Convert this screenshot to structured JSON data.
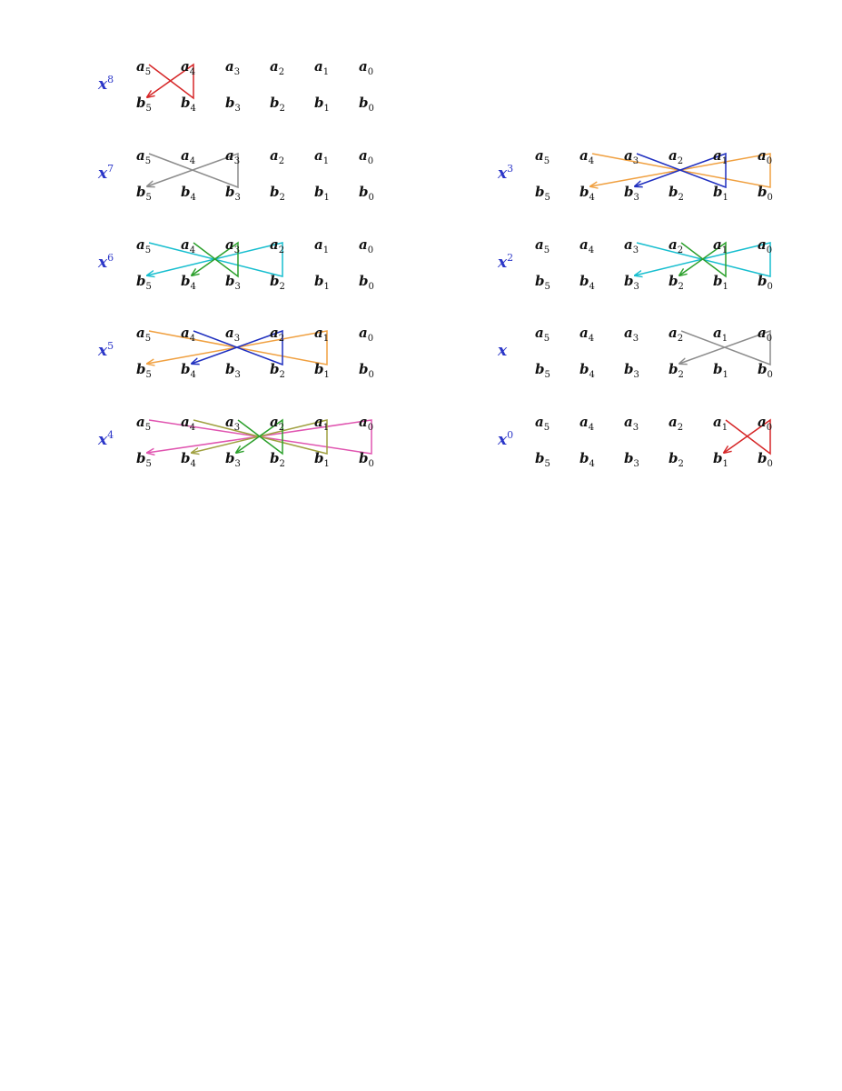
{
  "colors": {
    "red": "#d62728",
    "gray": "#8c8c8c",
    "cyan": "#17becf",
    "green": "#2ca02c",
    "orange": "#f0a040",
    "blue": "#1f2fbf",
    "magenta": "#e055b0",
    "olive": "#a0a040",
    "label": "#2b36c8"
  },
  "panels": [
    {
      "id": "x8",
      "base": "x",
      "exp": "8",
      "a": [
        [
          "a",
          "5"
        ],
        [
          "a",
          "4"
        ],
        [
          "a",
          "3"
        ],
        [
          "a",
          "2"
        ],
        [
          "a",
          "1"
        ],
        [
          "a",
          "0"
        ]
      ],
      "b": [
        [
          "b",
          "5"
        ],
        [
          "b",
          "4"
        ],
        [
          "b",
          "3"
        ],
        [
          "b",
          "2"
        ],
        [
          "b",
          "1"
        ],
        [
          "b",
          "0"
        ]
      ],
      "pairs": [
        {
          "from": 5,
          "to": 4,
          "color": "red"
        }
      ]
    },
    {
      "id": "x7",
      "base": "x",
      "exp": "7",
      "a": [
        [
          "a",
          "5"
        ],
        [
          "a",
          "4"
        ],
        [
          "a",
          "3"
        ],
        [
          "a",
          "2"
        ],
        [
          "a",
          "1"
        ],
        [
          "a",
          "0"
        ]
      ],
      "b": [
        [
          "b",
          "5"
        ],
        [
          "b",
          "4"
        ],
        [
          "b",
          "3"
        ],
        [
          "b",
          "2"
        ],
        [
          "b",
          "1"
        ],
        [
          "b",
          "0"
        ]
      ],
      "pairs": [
        {
          "from": 5,
          "to": 3,
          "color": "gray"
        }
      ]
    },
    {
      "id": "x6",
      "base": "x",
      "exp": "6",
      "a": [
        [
          "a",
          "5"
        ],
        [
          "a",
          "4"
        ],
        [
          "a",
          "3"
        ],
        [
          "a",
          "2"
        ],
        [
          "a",
          "1"
        ],
        [
          "a",
          "0"
        ]
      ],
      "b": [
        [
          "b",
          "5"
        ],
        [
          "b",
          "4"
        ],
        [
          "b",
          "3"
        ],
        [
          "b",
          "2"
        ],
        [
          "b",
          "1"
        ],
        [
          "b",
          "0"
        ]
      ],
      "pairs": [
        {
          "from": 5,
          "to": 2,
          "color": "cyan"
        },
        {
          "from": 4,
          "to": 3,
          "color": "green"
        }
      ]
    },
    {
      "id": "x5",
      "base": "x",
      "exp": "5",
      "a": [
        [
          "a",
          "5"
        ],
        [
          "a",
          "4"
        ],
        [
          "a",
          "3"
        ],
        [
          "a",
          "2"
        ],
        [
          "a",
          "1"
        ],
        [
          "a",
          "0"
        ]
      ],
      "b": [
        [
          "b",
          "5"
        ],
        [
          "b",
          "4"
        ],
        [
          "b",
          "3"
        ],
        [
          "b",
          "2"
        ],
        [
          "b",
          "1"
        ],
        [
          "b",
          "0"
        ]
      ],
      "pairs": [
        {
          "from": 5,
          "to": 1,
          "color": "orange"
        },
        {
          "from": 4,
          "to": 2,
          "color": "blue"
        }
      ]
    },
    {
      "id": "x4",
      "base": "x",
      "exp": "4",
      "a": [
        [
          "a",
          "5"
        ],
        [
          "a",
          "4"
        ],
        [
          "a",
          "3"
        ],
        [
          "a",
          "2"
        ],
        [
          "a",
          "1"
        ],
        [
          "a",
          "0"
        ]
      ],
      "b": [
        [
          "b",
          "5"
        ],
        [
          "b",
          "4"
        ],
        [
          "b",
          "3"
        ],
        [
          "b",
          "2"
        ],
        [
          "b",
          "1"
        ],
        [
          "b",
          "0"
        ]
      ],
      "pairs": [
        {
          "from": 5,
          "to": 0,
          "color": "magenta"
        },
        {
          "from": 4,
          "to": 1,
          "color": "olive"
        },
        {
          "from": 3,
          "to": 2,
          "color": "green"
        }
      ]
    },
    {
      "id": "x3",
      "base": "x",
      "exp": "3",
      "a": [
        [
          "a",
          "5"
        ],
        [
          "a",
          "4"
        ],
        [
          "a",
          "3"
        ],
        [
          "a",
          "2"
        ],
        [
          "a",
          "1"
        ],
        [
          "a",
          "0"
        ]
      ],
      "b": [
        [
          "b",
          "5"
        ],
        [
          "b",
          "4"
        ],
        [
          "b",
          "3"
        ],
        [
          "b",
          "2"
        ],
        [
          "b",
          "1"
        ],
        [
          "b",
          "0"
        ]
      ],
      "pairs": [
        {
          "from": 4,
          "to": 0,
          "color": "orange"
        },
        {
          "from": 3,
          "to": 1,
          "color": "blue"
        }
      ]
    },
    {
      "id": "x2",
      "base": "x",
      "exp": "2",
      "a": [
        [
          "a",
          "5"
        ],
        [
          "a",
          "4"
        ],
        [
          "a",
          "3"
        ],
        [
          "a",
          "2"
        ],
        [
          "a",
          "1"
        ],
        [
          "a",
          "0"
        ]
      ],
      "b": [
        [
          "b",
          "5"
        ],
        [
          "b",
          "4"
        ],
        [
          "b",
          "3"
        ],
        [
          "b",
          "2"
        ],
        [
          "b",
          "1"
        ],
        [
          "b",
          "0"
        ]
      ],
      "pairs": [
        {
          "from": 3,
          "to": 0,
          "color": "cyan"
        },
        {
          "from": 2,
          "to": 1,
          "color": "green"
        }
      ]
    },
    {
      "id": "x1",
      "base": "x",
      "exp": "",
      "a": [
        [
          "a",
          "5"
        ],
        [
          "a",
          "4"
        ],
        [
          "a",
          "3"
        ],
        [
          "a",
          "2"
        ],
        [
          "a",
          "1"
        ],
        [
          "a",
          "0"
        ]
      ],
      "b": [
        [
          "b",
          "5"
        ],
        [
          "b",
          "4"
        ],
        [
          "b",
          "3"
        ],
        [
          "b",
          "2"
        ],
        [
          "b",
          "1"
        ],
        [
          "b",
          "0"
        ]
      ],
      "pairs": [
        {
          "from": 2,
          "to": 0,
          "color": "gray"
        }
      ]
    },
    {
      "id": "x0",
      "base": "x",
      "exp": "0",
      "a": [
        [
          "a",
          "5"
        ],
        [
          "a",
          "4"
        ],
        [
          "a",
          "3"
        ],
        [
          "a",
          "2"
        ],
        [
          "a",
          "1"
        ],
        [
          "a",
          "0"
        ]
      ],
      "b": [
        [
          "b",
          "5"
        ],
        [
          "b",
          "4"
        ],
        [
          "b",
          "3"
        ],
        [
          "b",
          "2"
        ],
        [
          "b",
          "1"
        ],
        [
          "b",
          "0"
        ]
      ],
      "pairs": [
        {
          "from": 1,
          "to": 0,
          "color": "red"
        }
      ]
    }
  ]
}
